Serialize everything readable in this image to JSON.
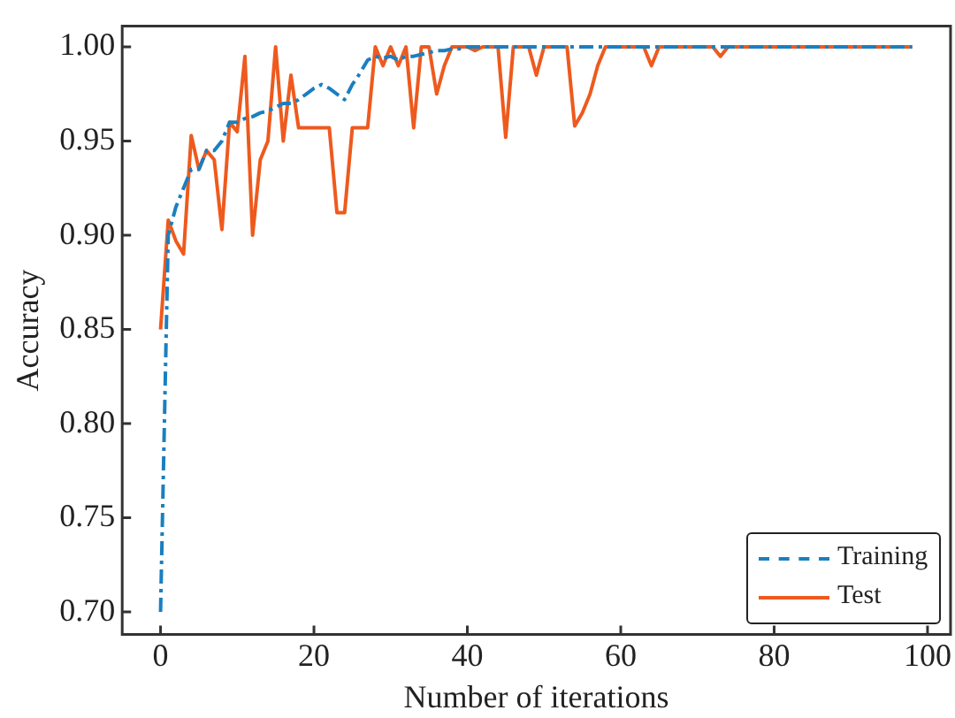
{
  "chart_data": {
    "type": "line",
    "xlabel": "Number of iterations",
    "ylabel": "Accuracy",
    "x": [
      0,
      1,
      2,
      3,
      4,
      5,
      6,
      7,
      8,
      9,
      10,
      11,
      12,
      13,
      14,
      15,
      16,
      17,
      18,
      19,
      20,
      21,
      22,
      23,
      24,
      25,
      26,
      27,
      28,
      29,
      30,
      31,
      32,
      33,
      34,
      35,
      36,
      37,
      38,
      39,
      40,
      41,
      42,
      43,
      44,
      45,
      46,
      47,
      48,
      49,
      50,
      51,
      52,
      53,
      54,
      55,
      56,
      57,
      58,
      59,
      60,
      61,
      62,
      63,
      64,
      65,
      66,
      67,
      68,
      69,
      70,
      71,
      72,
      73,
      74,
      75,
      76,
      77,
      78,
      79,
      80,
      81,
      82,
      83,
      84,
      85,
      86,
      87,
      88,
      89,
      90,
      91,
      92,
      93,
      94,
      95,
      96,
      97,
      98
    ],
    "series": [
      {
        "name": "Training",
        "color": "#1a7fc0",
        "line_style": "dashed",
        "values": [
          0.7,
          0.9,
          0.915,
          0.925,
          0.935,
          0.935,
          0.945,
          0.945,
          0.95,
          0.96,
          0.96,
          0.962,
          0.963,
          0.965,
          0.966,
          0.968,
          0.97,
          0.97,
          0.972,
          0.975,
          0.978,
          0.98,
          0.978,
          0.975,
          0.972,
          0.98,
          0.986,
          0.993,
          0.995,
          0.994,
          0.995,
          0.993,
          0.995,
          0.995,
          0.996,
          0.997,
          0.998,
          0.998,
          0.999,
          0.999,
          1.0,
          1.0,
          1.0,
          1.0,
          1.0,
          1.0,
          1.0,
          1.0,
          1.0,
          1.0,
          1.0,
          1.0,
          1.0,
          1.0,
          1.0,
          1.0,
          1.0,
          1.0,
          1.0,
          1.0,
          1.0,
          1.0,
          1.0,
          1.0,
          1.0,
          1.0,
          1.0,
          1.0,
          1.0,
          1.0,
          1.0,
          1.0,
          1.0,
          1.0,
          1.0,
          1.0,
          1.0,
          1.0,
          1.0,
          1.0,
          1.0,
          1.0,
          1.0,
          1.0,
          1.0,
          1.0,
          1.0,
          1.0,
          1.0,
          1.0,
          1.0,
          1.0,
          1.0,
          1.0,
          1.0,
          1.0,
          1.0,
          1.0,
          1.0
        ]
      },
      {
        "name": "Test",
        "color": "#ee5a1e",
        "line_style": "solid",
        "values": [
          0.85,
          0.908,
          0.897,
          0.89,
          0.953,
          0.935,
          0.945,
          0.94,
          0.903,
          0.96,
          0.955,
          0.995,
          0.9,
          0.94,
          0.95,
          1.0,
          0.95,
          0.985,
          0.957,
          0.957,
          0.957,
          0.957,
          0.957,
          0.912,
          0.912,
          0.957,
          0.957,
          0.957,
          1.0,
          0.99,
          1.0,
          0.99,
          1.0,
          0.957,
          1.0,
          1.0,
          0.975,
          0.99,
          1.0,
          1.0,
          1.0,
          0.998,
          1.0,
          1.0,
          1.0,
          0.952,
          1.0,
          1.0,
          1.0,
          0.985,
          1.0,
          1.0,
          1.0,
          1.0,
          0.958,
          0.965,
          0.975,
          0.99,
          1.0,
          1.0,
          1.0,
          1.0,
          1.0,
          1.0,
          0.99,
          1.0,
          1.0,
          1.0,
          1.0,
          1.0,
          1.0,
          1.0,
          1.0,
          0.995,
          1.0,
          1.0,
          1.0,
          1.0,
          1.0,
          1.0,
          1.0,
          1.0,
          1.0,
          1.0,
          1.0,
          1.0,
          1.0,
          1.0,
          1.0,
          1.0,
          1.0,
          1.0,
          1.0,
          1.0,
          1.0,
          1.0,
          1.0,
          1.0,
          1.0
        ]
      }
    ],
    "xlim": [
      -5,
      103
    ],
    "xticks": [
      0,
      20,
      40,
      60,
      80,
      100
    ],
    "ylim": [
      0.688,
      1.011
    ],
    "yticks": [
      {
        "value": 0.7,
        "label": "0.70"
      },
      {
        "value": 0.75,
        "label": "0.75"
      },
      {
        "value": 0.8,
        "label": "0.80"
      },
      {
        "value": 0.85,
        "label": "0.85"
      },
      {
        "value": 0.9,
        "label": "0.90"
      },
      {
        "value": 0.95,
        "label": "0.95"
      },
      {
        "value": 1.0,
        "label": "1.00"
      }
    ],
    "legend": "bottom right",
    "marker": "none"
  }
}
